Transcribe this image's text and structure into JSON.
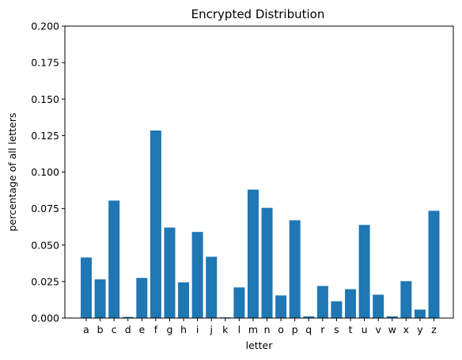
{
  "chart_data": {
    "type": "bar",
    "title": "Encrypted Distribution",
    "xlabel": "letter",
    "ylabel": "percentage of all letters",
    "ylim": [
      0,
      0.2
    ],
    "yticks": [
      "0.000",
      "0.025",
      "0.050",
      "0.075",
      "0.100",
      "0.125",
      "0.150",
      "0.175",
      "0.200"
    ],
    "bar_color": "#1f77b4",
    "grid": false,
    "categories": [
      "a",
      "b",
      "c",
      "d",
      "e",
      "f",
      "g",
      "h",
      "i",
      "j",
      "k",
      "l",
      "m",
      "n",
      "o",
      "p",
      "q",
      "r",
      "s",
      "t",
      "u",
      "v",
      "w",
      "x",
      "y",
      "z"
    ],
    "values": [
      0.0415,
      0.0265,
      0.0805,
      0.0008,
      0.0275,
      0.1285,
      0.062,
      0.0245,
      0.059,
      0.042,
      0.0005,
      0.021,
      0.088,
      0.0755,
      0.0155,
      0.067,
      0.0012,
      0.022,
      0.0115,
      0.0198,
      0.0638,
      0.016,
      0.0012,
      0.0253,
      0.0058,
      0.0735
    ]
  }
}
